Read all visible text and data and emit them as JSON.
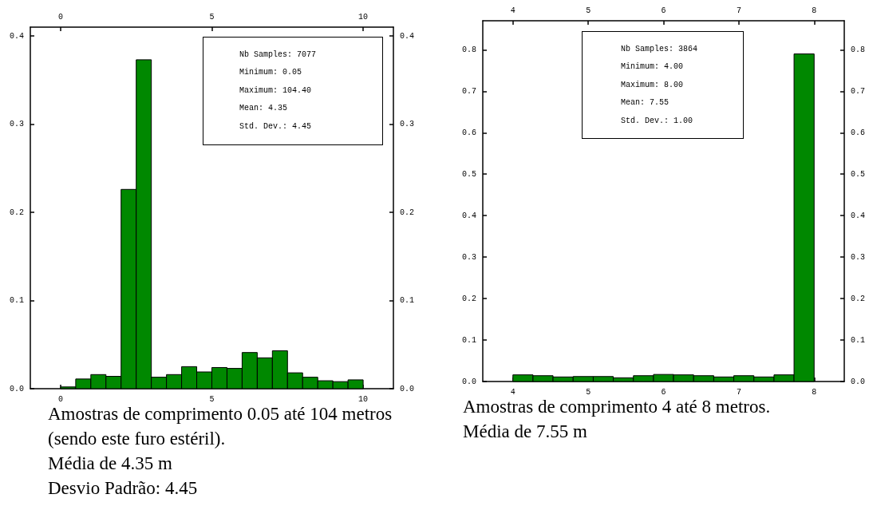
{
  "chart_data": [
    {
      "type": "histogram",
      "color": "#008800",
      "bins": [
        0,
        0.5,
        1,
        1.5,
        2,
        2.5,
        3,
        3.5,
        4,
        4.5,
        5,
        5.5,
        6,
        6.5,
        7,
        7.5,
        8,
        8.5,
        9,
        9.5,
        10
      ],
      "values": [
        0.002,
        0.011,
        0.016,
        0.014,
        0.226,
        0.373,
        0.013,
        0.016,
        0.025,
        0.019,
        0.024,
        0.023,
        0.041,
        0.035,
        0.043,
        0.018,
        0.013,
        0.009,
        0.008,
        0.01
      ],
      "xlim": [
        -1,
        11
      ],
      "xticks": [
        0,
        5,
        10
      ],
      "x2lim": [
        -1,
        11
      ],
      "x2ticks": [
        0,
        5,
        10
      ],
      "ylim": [
        0,
        0.41
      ],
      "yticks": [
        {
          "value": 0,
          "label": "0.0"
        },
        0.1,
        0.2,
        0.3,
        0.4
      ],
      "y2lim": [
        0,
        0.41
      ],
      "y2ticks": [
        {
          "value": 0,
          "label": "0.0"
        },
        0.1,
        0.2,
        0.3,
        0.4
      ],
      "grid": false,
      "annotations": [
        "Nb Samples: 7077",
        "Minimum: 0.05",
        "Maximum: 104.40",
        "Mean: 4.35",
        "Std. Dev.: 4.45",
        "Amostras de comprimento 0.05 até 104 metros (sendo este furo estéril).",
        "Média de 4.35 m",
        "Desvio Padrão: 4.45"
      ]
    },
    {
      "type": "histogram",
      "color": "#008800",
      "bins": [
        4,
        4.267,
        4.533,
        4.8,
        5.067,
        5.333,
        5.6,
        5.867,
        6.133,
        6.4,
        6.667,
        6.933,
        7.2,
        7.467,
        7.733,
        8
      ],
      "values": [
        0.016,
        0.014,
        0.011,
        0.012,
        0.012,
        0.009,
        0.014,
        0.017,
        0.016,
        0.014,
        0.011,
        0.014,
        0.011,
        0.016,
        0.79
      ],
      "xlim": [
        3.6,
        8.4
      ],
      "xticks": [
        4,
        5,
        6,
        7,
        8
      ],
      "x2lim": [
        3.6,
        8.4
      ],
      "x2ticks": [
        4,
        5,
        6,
        7,
        8
      ],
      "ylim": [
        0,
        0.87
      ],
      "yticks": [
        {
          "value": 0,
          "label": "0.0"
        },
        0.1,
        0.2,
        0.3,
        0.4,
        0.5,
        0.6,
        0.7,
        0.8
      ],
      "y2lim": [
        0,
        0.87
      ],
      "y2ticks": [
        {
          "value": 0,
          "label": "0.0"
        },
        0.1,
        0.2,
        0.3,
        0.4,
        0.5,
        0.6,
        0.7,
        0.8
      ],
      "grid": false,
      "annotations": [
        "Nb Samples: 3864",
        "Minimum: 4.00",
        "Maximum: 8.00",
        "Mean: 7.55",
        "Std. Dev.: 1.00",
        "Amostras de comprimento 4 até 8 metros.",
        "Média de 7.55 m"
      ]
    }
  ]
}
